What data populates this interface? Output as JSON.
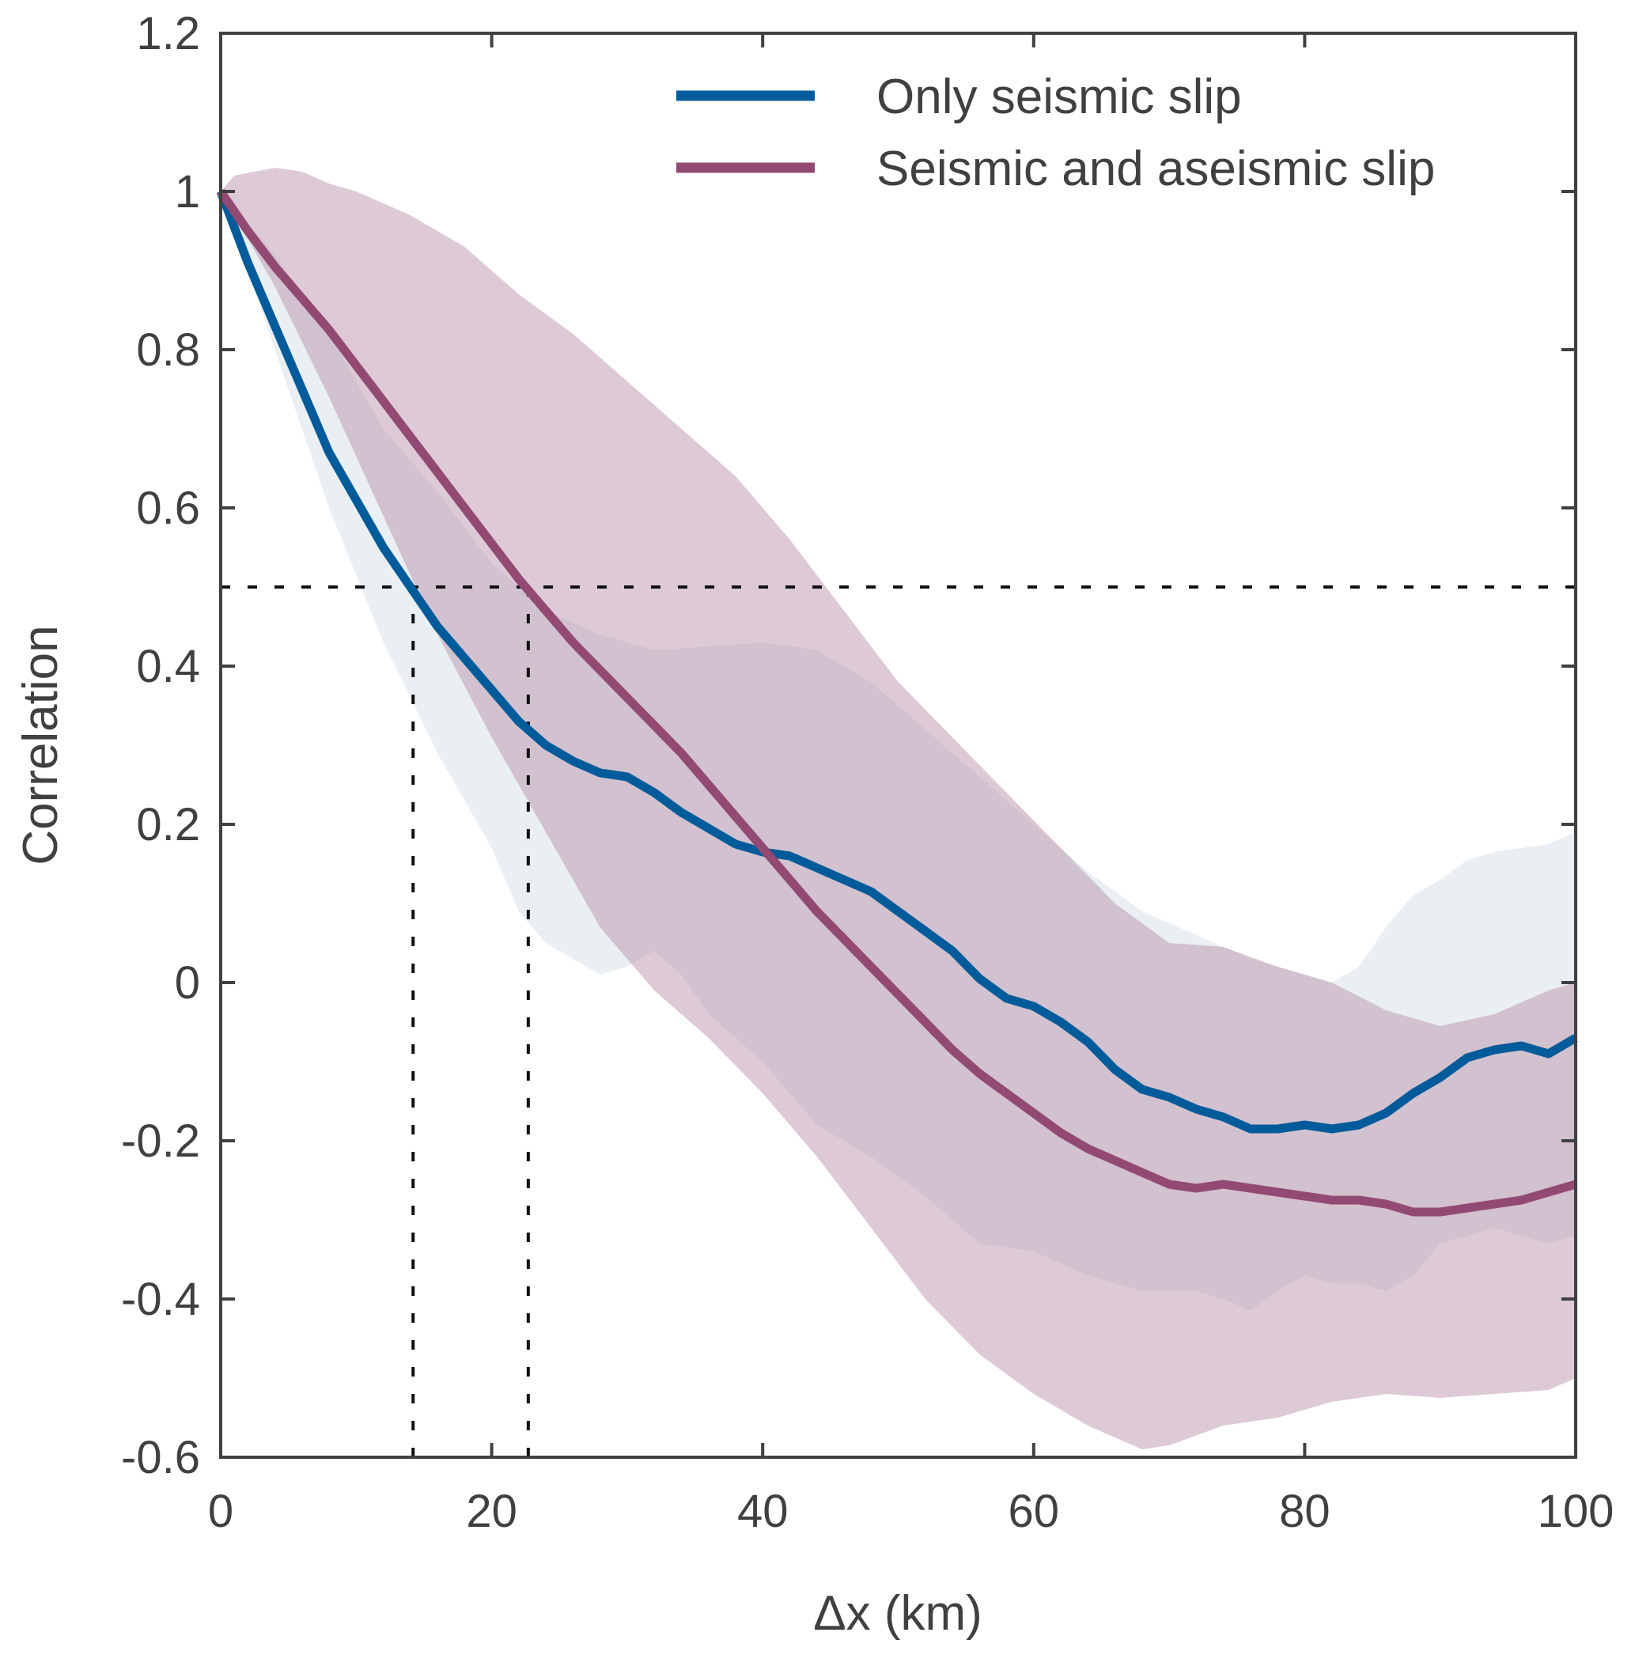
{
  "chart_data": {
    "type": "line",
    "title": "",
    "xlabel": "Δx (km)",
    "ylabel": "Correlation",
    "xlim": [
      0,
      100
    ],
    "ylim": [
      -0.6,
      1.2
    ],
    "xticks": [
      0,
      20,
      40,
      60,
      80,
      100
    ],
    "xtick_labels": [
      "0",
      "20",
      "40",
      "60",
      "80",
      "100"
    ],
    "yticks": [
      1.2,
      1,
      0.8,
      0.6,
      0.4,
      0.2,
      0,
      -0.2,
      -0.4,
      -0.6
    ],
    "ytick_labels": [
      "1.2",
      "1",
      "0.8",
      "0.6",
      "0.4",
      "0.2",
      "0",
      "-0.2",
      "-0.4",
      "-0.6"
    ],
    "grid": false,
    "legend_position": "top-right",
    "reference_lines": {
      "horizontal": {
        "y": 0.5,
        "style": "dotted"
      },
      "vertical": [
        {
          "x": 14.2,
          "y_from": -0.6,
          "y_to": 0.5,
          "style": "dotted"
        },
        {
          "x": 22.7,
          "y_from": -0.6,
          "y_to": 0.5,
          "style": "dotted"
        }
      ]
    },
    "series": [
      {
        "name": "Only seismic slip",
        "color": "#005b9a",
        "band_color": "#e9eff3",
        "x": [
          0,
          2,
          4,
          6,
          8,
          10,
          12,
          14,
          16,
          18,
          20,
          22,
          24,
          26,
          28,
          30,
          32,
          34,
          36,
          38,
          40,
          42,
          44,
          46,
          48,
          50,
          52,
          54,
          56,
          58,
          60,
          62,
          64,
          66,
          68,
          70,
          72,
          74,
          76,
          78,
          80,
          82,
          84,
          86,
          88,
          90,
          92,
          94,
          96,
          98,
          100
        ],
        "values": [
          1.0,
          0.91,
          0.83,
          0.75,
          0.67,
          0.61,
          0.55,
          0.5,
          0.45,
          0.41,
          0.37,
          0.33,
          0.3,
          0.28,
          0.265,
          0.26,
          0.24,
          0.215,
          0.195,
          0.175,
          0.165,
          0.16,
          0.145,
          0.13,
          0.115,
          0.09,
          0.065,
          0.04,
          0.005,
          -0.02,
          -0.03,
          -0.05,
          -0.075,
          -0.11,
          -0.135,
          -0.145,
          -0.16,
          -0.17,
          -0.185,
          -0.185,
          -0.18,
          -0.185,
          -0.18,
          -0.165,
          -0.14,
          -0.12,
          -0.095,
          -0.085,
          -0.08,
          -0.09,
          -0.07
        ],
        "band_upper": {
          "x": [
            0,
            4,
            8,
            12,
            16,
            20,
            24,
            28,
            32,
            36,
            40,
            44,
            48,
            52,
            56,
            60,
            64,
            68,
            72,
            76,
            80,
            82,
            84,
            86,
            88,
            90,
            92,
            94,
            96,
            98,
            100
          ],
          "values": [
            1.0,
            0.92,
            0.82,
            0.7,
            0.62,
            0.53,
            0.47,
            0.44,
            0.42,
            0.425,
            0.43,
            0.42,
            0.38,
            0.32,
            0.26,
            0.2,
            0.14,
            0.09,
            0.06,
            0.03,
            0.01,
            0.0,
            0.02,
            0.07,
            0.11,
            0.13,
            0.155,
            0.165,
            0.17,
            0.175,
            0.19
          ]
        },
        "band_lower": {
          "x": [
            0,
            4,
            8,
            12,
            16,
            20,
            22,
            24,
            26,
            28,
            30,
            32,
            34,
            36,
            40,
            44,
            48,
            52,
            56,
            60,
            64,
            68,
            72,
            74,
            76,
            78,
            80,
            82,
            84,
            86,
            88,
            90,
            94,
            98,
            100
          ],
          "values": [
            1.0,
            0.8,
            0.6,
            0.43,
            0.29,
            0.17,
            0.09,
            0.05,
            0.03,
            0.01,
            0.02,
            0.04,
            0.01,
            -0.04,
            -0.1,
            -0.18,
            -0.22,
            -0.27,
            -0.33,
            -0.34,
            -0.37,
            -0.39,
            -0.39,
            -0.4,
            -0.415,
            -0.39,
            -0.37,
            -0.38,
            -0.38,
            -0.39,
            -0.37,
            -0.33,
            -0.31,
            -0.33,
            -0.32
          ]
        }
      },
      {
        "name": "Seismic and aseismic slip",
        "color": "#934a72",
        "band_color": "#ddc4d2",
        "x": [
          0,
          2,
          4,
          6,
          8,
          10,
          12,
          14,
          16,
          18,
          20,
          22,
          24,
          26,
          28,
          30,
          32,
          34,
          36,
          38,
          40,
          42,
          44,
          46,
          48,
          50,
          52,
          54,
          56,
          58,
          60,
          62,
          64,
          66,
          68,
          70,
          72,
          74,
          76,
          78,
          80,
          82,
          84,
          86,
          88,
          90,
          92,
          94,
          96,
          98,
          100
        ],
        "values": [
          1.0,
          0.95,
          0.905,
          0.865,
          0.825,
          0.78,
          0.735,
          0.69,
          0.645,
          0.6,
          0.555,
          0.51,
          0.47,
          0.43,
          0.395,
          0.36,
          0.325,
          0.29,
          0.25,
          0.21,
          0.17,
          0.13,
          0.09,
          0.055,
          0.02,
          -0.015,
          -0.05,
          -0.085,
          -0.115,
          -0.14,
          -0.165,
          -0.19,
          -0.21,
          -0.225,
          -0.24,
          -0.255,
          -0.26,
          -0.255,
          -0.26,
          -0.265,
          -0.27,
          -0.275,
          -0.275,
          -0.28,
          -0.29,
          -0.29,
          -0.285,
          -0.28,
          -0.275,
          -0.265,
          -0.255
        ],
        "band_upper": {
          "x": [
            0,
            1,
            4,
            6,
            8,
            10,
            14,
            18,
            22,
            26,
            30,
            34,
            38,
            42,
            46,
            50,
            54,
            58,
            62,
            66,
            70,
            74,
            78,
            82,
            86,
            90,
            94,
            98,
            100
          ],
          "values": [
            1.0,
            1.02,
            1.03,
            1.025,
            1.01,
            1.0,
            0.97,
            0.93,
            0.87,
            0.82,
            0.76,
            0.7,
            0.64,
            0.56,
            0.47,
            0.38,
            0.31,
            0.24,
            0.17,
            0.1,
            0.05,
            0.045,
            0.02,
            0.0,
            -0.035,
            -0.055,
            -0.04,
            -0.01,
            0.0
          ]
        },
        "band_lower": {
          "x": [
            0,
            4,
            8,
            12,
            16,
            20,
            24,
            28,
            32,
            36,
            40,
            44,
            48,
            52,
            56,
            60,
            64,
            68,
            70,
            74,
            78,
            82,
            86,
            90,
            94,
            98,
            100
          ],
          "values": [
            1.0,
            0.88,
            0.74,
            0.59,
            0.44,
            0.31,
            0.19,
            0.07,
            -0.01,
            -0.07,
            -0.14,
            -0.22,
            -0.31,
            -0.4,
            -0.47,
            -0.52,
            -0.56,
            -0.59,
            -0.585,
            -0.56,
            -0.55,
            -0.53,
            -0.52,
            -0.525,
            -0.52,
            -0.515,
            -0.5
          ]
        }
      }
    ]
  }
}
